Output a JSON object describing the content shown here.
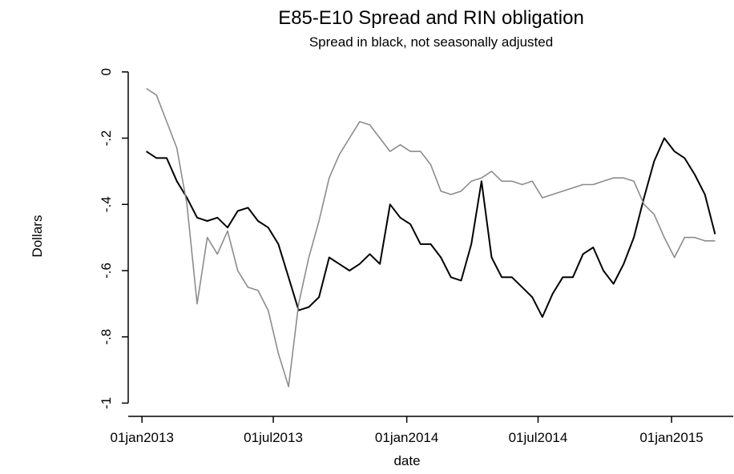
{
  "chart_data": {
    "type": "line",
    "title": "E85-E10 Spread and RIN obligation",
    "subtitle": "Spread in black, not seasonally adjusted",
    "y_label": "Dollars",
    "x_label": "date",
    "x": [
      "2013-01-07",
      "2013-01-21",
      "2013-02-04",
      "2013-02-18",
      "2013-03-04",
      "2013-03-18",
      "2013-04-01",
      "2013-04-15",
      "2013-04-29",
      "2013-05-13",
      "2013-05-27",
      "2013-06-10",
      "2013-06-24",
      "2013-07-08",
      "2013-07-22",
      "2013-08-05",
      "2013-08-19",
      "2013-09-02",
      "2013-09-16",
      "2013-09-30",
      "2013-10-14",
      "2013-10-28",
      "2013-11-11",
      "2013-11-25",
      "2013-12-09",
      "2013-12-23",
      "2014-01-06",
      "2014-01-20",
      "2014-02-03",
      "2014-02-17",
      "2014-03-03",
      "2014-03-17",
      "2014-03-31",
      "2014-04-14",
      "2014-04-28",
      "2014-05-12",
      "2014-05-26",
      "2014-06-09",
      "2014-06-23",
      "2014-07-07",
      "2014-07-21",
      "2014-08-04",
      "2014-08-18",
      "2014-09-01",
      "2014-09-15",
      "2014-09-29",
      "2014-10-13",
      "2014-10-27",
      "2014-11-10",
      "2014-11-24",
      "2014-12-08",
      "2014-12-22",
      "2015-01-05",
      "2015-01-19",
      "2015-02-02",
      "2015-02-16",
      "2015-03-02"
    ],
    "series": [
      {
        "color": "#000000",
        "values": [
          -0.24,
          -0.26,
          -0.26,
          -0.33,
          -0.38,
          -0.44,
          -0.45,
          -0.44,
          -0.47,
          -0.42,
          -0.41,
          -0.45,
          -0.47,
          -0.52,
          -0.62,
          -0.72,
          -0.71,
          -0.68,
          -0.56,
          -0.58,
          -0.6,
          -0.58,
          -0.55,
          -0.58,
          -0.4,
          -0.44,
          -0.46,
          -0.52,
          -0.52,
          -0.56,
          -0.62,
          -0.63,
          -0.52,
          -0.33,
          -0.56,
          -0.62,
          -0.62,
          -0.65,
          -0.68,
          -0.74,
          -0.67,
          -0.62,
          -0.62,
          -0.55,
          -0.53,
          -0.6,
          -0.64,
          -0.58,
          -0.5,
          -0.38,
          -0.27,
          -0.2,
          -0.24,
          -0.26,
          -0.31,
          -0.37,
          -0.49
        ]
      },
      {
        "color": "#8c8c8c",
        "values": [
          -0.05,
          -0.07,
          -0.15,
          -0.23,
          -0.4,
          -0.7,
          -0.5,
          -0.55,
          -0.48,
          -0.6,
          -0.65,
          -0.66,
          -0.72,
          -0.85,
          -0.95,
          -0.7,
          -0.56,
          -0.45,
          -0.32,
          -0.25,
          -0.2,
          -0.15,
          -0.16,
          -0.2,
          -0.24,
          -0.22,
          -0.24,
          -0.24,
          -0.28,
          -0.36,
          -0.37,
          -0.36,
          -0.33,
          -0.32,
          -0.3,
          -0.33,
          -0.33,
          -0.34,
          -0.33,
          -0.38,
          -0.37,
          -0.36,
          -0.35,
          -0.34,
          -0.34,
          -0.33,
          -0.32,
          -0.32,
          -0.33,
          -0.4,
          -0.43,
          -0.5,
          -0.56,
          -0.5,
          -0.5,
          -0.51,
          -0.51
        ]
      }
    ],
    "xlim": [
      "2012-12-13",
      "2015-03-27"
    ],
    "xticks": [
      {
        "value": "2013-01-01",
        "label": "01jan2013"
      },
      {
        "value": "2013-07-01",
        "label": "01jul2013"
      },
      {
        "value": "2014-01-01",
        "label": "01jan2014"
      },
      {
        "value": "2014-07-01",
        "label": "01jul2014"
      },
      {
        "value": "2015-01-01",
        "label": "01jan2015"
      }
    ],
    "ylim": [
      -1.04,
      0.06
    ],
    "yticks": [
      {
        "value": -1,
        "label": "-1"
      },
      {
        "value": -0.8,
        "label": "-.8"
      },
      {
        "value": -0.6,
        "label": "-.6"
      },
      {
        "value": -0.4,
        "label": "-.4"
      },
      {
        "value": -0.2,
        "label": "-.2"
      },
      0
    ]
  }
}
